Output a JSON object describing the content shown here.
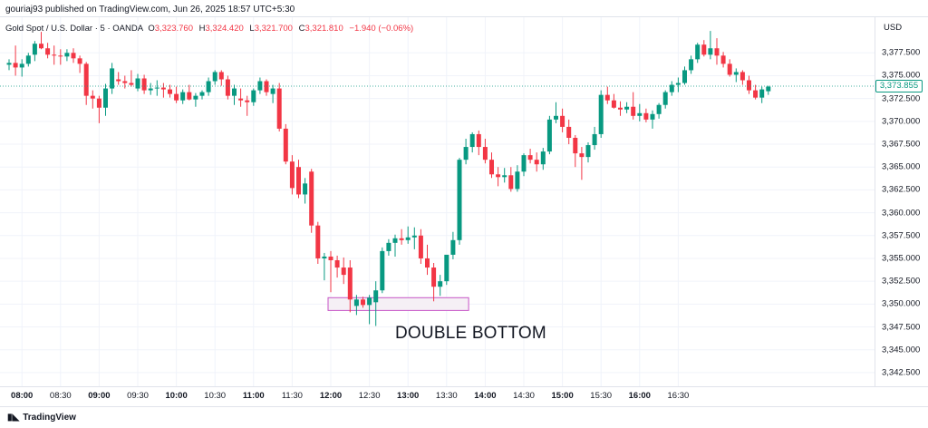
{
  "header": {
    "publisher_line": "gouriaj93 published on TradingView.com, Jun 26, 2025 18:57 UTC+5:30"
  },
  "symbol_bar": {
    "label": "Gold Spot / U.S. Dollar · 5 · OANDA",
    "o_key": "O",
    "o": "3,323.760",
    "h_key": "H",
    "h": "3,324.420",
    "l_key": "L",
    "l": "3,321.700",
    "c_key": "C",
    "c": "3,321.810",
    "change": "−1.940 (−0.06%)"
  },
  "axis": {
    "currency": "USD",
    "last_price": "3,373.855"
  },
  "annotation": {
    "text": "DOUBLE BOTTOM"
  },
  "brand": {
    "name": "TradingView"
  },
  "colors": {
    "up": "#089981",
    "down": "#f23645",
    "box_border": "#c653c6",
    "box_fill": "#f5f0f5",
    "grid": "#f0f3fa"
  },
  "chart_data": {
    "type": "candlestick",
    "ylim": [
      3341.0,
      3381.5
    ],
    "y_ticks": [
      "3,377.500",
      "3,375.000",
      "3,372.500",
      "3,370.000",
      "3,367.500",
      "3,365.000",
      "3,362.500",
      "3,360.000",
      "3,357.500",
      "3,355.000",
      "3,352.500",
      "3,350.000",
      "3,347.500",
      "3,345.000",
      "3,342.500"
    ],
    "x_ticks": [
      {
        "label": "08:00",
        "bold": true
      },
      {
        "label": "08:30",
        "bold": false
      },
      {
        "label": "09:00",
        "bold": true
      },
      {
        "label": "09:30",
        "bold": false
      },
      {
        "label": "10:00",
        "bold": true
      },
      {
        "label": "10:30",
        "bold": false
      },
      {
        "label": "11:00",
        "bold": true
      },
      {
        "label": "11:30",
        "bold": false
      },
      {
        "label": "12:00",
        "bold": true
      },
      {
        "label": "12:30",
        "bold": false
      },
      {
        "label": "13:00",
        "bold": true
      },
      {
        "label": "13:30",
        "bold": false
      },
      {
        "label": "14:00",
        "bold": true
      },
      {
        "label": "14:30",
        "bold": false
      },
      {
        "label": "15:00",
        "bold": true
      },
      {
        "label": "15:30",
        "bold": false
      },
      {
        "label": "16:00",
        "bold": true
      },
      {
        "label": "16:30",
        "bold": false
      }
    ],
    "annotation_box": {
      "price_low": 3349.3,
      "price_high": 3350.7,
      "from_index": 50,
      "to_index": 71
    },
    "ohlc": [
      [
        3376.2,
        3376.8,
        3375.6,
        3376.4
      ],
      [
        3376.4,
        3378.3,
        3375.0,
        3375.9
      ],
      [
        3375.9,
        3376.8,
        3374.9,
        3376.3
      ],
      [
        3376.3,
        3377.5,
        3376.0,
        3377.2
      ],
      [
        3377.3,
        3378.8,
        3376.6,
        3378.5
      ],
      [
        3378.5,
        3379.8,
        3377.9,
        3378.0
      ],
      [
        3378.0,
        3378.6,
        3376.9,
        3377.3
      ],
      [
        3377.3,
        3378.3,
        3376.2,
        3377.2
      ],
      [
        3377.2,
        3377.9,
        3376.2,
        3377.1
      ],
      [
        3377.1,
        3377.9,
        3376.6,
        3377.5
      ],
      [
        3377.5,
        3378.0,
        3376.4,
        3376.9
      ],
      [
        3376.9,
        3377.2,
        3375.3,
        3376.3
      ],
      [
        3376.3,
        3376.5,
        3371.8,
        3372.8
      ],
      [
        3372.8,
        3373.4,
        3371.4,
        3372.5
      ],
      [
        3372.5,
        3372.8,
        3369.8,
        3371.5
      ],
      [
        3371.5,
        3374.1,
        3370.6,
        3373.6
      ],
      [
        3373.6,
        3376.4,
        3373.0,
        3375.8
      ],
      [
        3374.6,
        3375.4,
        3374.0,
        3374.4
      ],
      [
        3374.4,
        3375.0,
        3373.6,
        3374.2
      ],
      [
        3374.2,
        3375.6,
        3373.8,
        3374.0
      ],
      [
        3373.6,
        3375.2,
        3373.3,
        3374.7
      ],
      [
        3374.7,
        3375.1,
        3373.0,
        3373.4
      ],
      [
        3373.4,
        3374.2,
        3372.9,
        3373.6
      ],
      [
        3373.6,
        3374.5,
        3372.8,
        3373.7
      ],
      [
        3373.7,
        3374.2,
        3372.6,
        3373.5
      ],
      [
        3373.5,
        3374.0,
        3372.6,
        3373.0
      ],
      [
        3373.0,
        3373.8,
        3372.0,
        3372.3
      ],
      [
        3372.3,
        3373.5,
        3371.9,
        3373.2
      ],
      [
        3373.2,
        3374.0,
        3372.3,
        3372.4
      ],
      [
        3372.4,
        3373.1,
        3371.6,
        3372.8
      ],
      [
        3372.8,
        3373.4,
        3372.4,
        3373.2
      ],
      [
        3373.2,
        3374.8,
        3372.8,
        3374.4
      ],
      [
        3374.4,
        3375.6,
        3374.0,
        3375.4
      ],
      [
        3375.4,
        3375.6,
        3373.9,
        3374.6
      ],
      [
        3374.6,
        3375.0,
        3372.4,
        3372.8
      ],
      [
        3372.8,
        3374.0,
        3371.8,
        3373.6
      ],
      [
        3372.5,
        3373.6,
        3371.6,
        3372.3
      ],
      [
        3372.3,
        3372.8,
        3370.6,
        3372.1
      ],
      [
        3372.1,
        3373.6,
        3371.7,
        3373.4
      ],
      [
        3373.4,
        3374.8,
        3373.0,
        3374.4
      ],
      [
        3374.4,
        3374.6,
        3372.8,
        3373.2
      ],
      [
        3373.0,
        3374.0,
        3372.0,
        3373.6
      ],
      [
        3373.6,
        3374.2,
        3368.9,
        3369.2
      ],
      [
        3369.2,
        3369.7,
        3365.3,
        3365.6
      ],
      [
        3365.6,
        3366.3,
        3362.0,
        3362.7
      ],
      [
        3365.0,
        3365.8,
        3361.6,
        3362.0
      ],
      [
        3362.0,
        3363.8,
        3361.0,
        3363.2
      ],
      [
        3364.5,
        3364.8,
        3357.8,
        3358.6
      ],
      [
        3358.6,
        3359.0,
        3354.4,
        3355.0
      ],
      [
        3355.0,
        3355.6,
        3352.6,
        3355.2
      ],
      [
        3355.2,
        3355.8,
        3351.3,
        3354.8
      ],
      [
        3354.8,
        3355.3,
        3352.9,
        3354.0
      ],
      [
        3354.0,
        3355.1,
        3352.2,
        3353.2
      ],
      [
        3354.0,
        3354.8,
        3349.1,
        3350.5
      ],
      [
        3349.8,
        3351.0,
        3348.8,
        3350.5
      ],
      [
        3350.5,
        3350.8,
        3349.6,
        3349.9
      ],
      [
        3349.9,
        3351.0,
        3347.8,
        3350.7
      ],
      [
        3350.2,
        3352.5,
        3347.6,
        3351.5
      ],
      [
        3351.5,
        3356.2,
        3351.2,
        3355.8
      ],
      [
        3355.8,
        3357.1,
        3355.3,
        3356.7
      ],
      [
        3356.7,
        3357.6,
        3355.2,
        3357.2
      ],
      [
        3357.2,
        3358.2,
        3356.5,
        3357.0
      ],
      [
        3357.0,
        3358.5,
        3356.6,
        3357.3
      ],
      [
        3357.3,
        3358.4,
        3356.0,
        3357.5
      ],
      [
        3357.5,
        3358.2,
        3354.4,
        3355.0
      ],
      [
        3355.0,
        3356.5,
        3353.2,
        3354.0
      ],
      [
        3354.0,
        3354.5,
        3350.3,
        3351.9
      ],
      [
        3351.9,
        3353.2,
        3350.9,
        3352.5
      ],
      [
        3352.5,
        3355.0,
        3352.1,
        3355.4
      ],
      [
        3355.4,
        3357.9,
        3354.9,
        3357.0
      ],
      [
        3357.0,
        3366.0,
        3356.5,
        3365.8
      ],
      [
        3365.8,
        3368.1,
        3365.3,
        3367.2
      ],
      [
        3367.2,
        3368.8,
        3366.6,
        3368.6
      ],
      [
        3368.6,
        3369.0,
        3366.3,
        3367.2
      ],
      [
        3367.2,
        3368.1,
        3365.4,
        3365.8
      ],
      [
        3365.8,
        3366.6,
        3363.8,
        3364.2
      ],
      [
        3364.2,
        3365.0,
        3362.9,
        3363.9
      ],
      [
        3363.9,
        3364.9,
        3363.3,
        3364.1
      ],
      [
        3364.1,
        3365.0,
        3362.3,
        3362.6
      ],
      [
        3362.6,
        3365.2,
        3362.3,
        3364.5
      ],
      [
        3364.5,
        3366.5,
        3364.0,
        3366.3
      ],
      [
        3366.3,
        3367.0,
        3365.4,
        3365.8
      ],
      [
        3365.8,
        3366.6,
        3364.5,
        3365.3
      ],
      [
        3365.3,
        3367.1,
        3364.7,
        3366.7
      ],
      [
        3366.7,
        3370.6,
        3366.4,
        3370.2
      ],
      [
        3370.2,
        3372.1,
        3369.8,
        3370.6
      ],
      [
        3370.6,
        3371.4,
        3368.8,
        3369.4
      ],
      [
        3369.4,
        3370.2,
        3367.5,
        3368.2
      ],
      [
        3368.2,
        3368.5,
        3365.0,
        3366.5
      ],
      [
        3366.5,
        3367.2,
        3363.6,
        3366.1
      ],
      [
        3366.1,
        3367.7,
        3365.5,
        3367.4
      ],
      [
        3367.4,
        3369.4,
        3366.9,
        3368.6
      ],
      [
        3368.6,
        3373.4,
        3368.2,
        3372.9
      ],
      [
        3372.9,
        3373.8,
        3371.9,
        3372.3
      ],
      [
        3372.3,
        3373.0,
        3371.4,
        3371.5
      ],
      [
        3371.5,
        3372.2,
        3370.6,
        3371.3
      ],
      [
        3371.3,
        3372.1,
        3370.9,
        3371.6
      ],
      [
        3371.6,
        3373.2,
        3370.2,
        3370.6
      ],
      [
        3370.6,
        3371.9,
        3370.0,
        3370.9
      ],
      [
        3370.9,
        3371.4,
        3369.9,
        3370.2
      ],
      [
        3370.2,
        3371.2,
        3369.2,
        3370.8
      ],
      [
        3370.8,
        3372.0,
        3370.3,
        3371.8
      ],
      [
        3371.8,
        3373.4,
        3371.4,
        3373.2
      ],
      [
        3373.2,
        3374.4,
        3372.8,
        3374.0
      ],
      [
        3374.0,
        3374.8,
        3373.2,
        3374.2
      ],
      [
        3374.2,
        3376.0,
        3374.0,
        3375.6
      ],
      [
        3375.6,
        3377.2,
        3375.2,
        3376.8
      ],
      [
        3376.8,
        3378.6,
        3376.4,
        3378.4
      ],
      [
        3378.4,
        3378.9,
        3377.1,
        3377.3
      ],
      [
        3377.3,
        3379.9,
        3376.8,
        3378.0
      ],
      [
        3378.0,
        3379.1,
        3376.2,
        3377.2
      ],
      [
        3377.2,
        3377.6,
        3375.9,
        3376.3
      ],
      [
        3376.3,
        3376.8,
        3374.9,
        3375.1
      ],
      [
        3375.1,
        3375.8,
        3374.3,
        3375.4
      ],
      [
        3375.4,
        3375.6,
        3374.0,
        3374.5
      ],
      [
        3374.5,
        3375.0,
        3373.0,
        3373.4
      ],
      [
        3373.4,
        3374.0,
        3372.4,
        3372.6
      ],
      [
        3372.6,
        3373.8,
        3372.0,
        3373.5
      ],
      [
        3373.3,
        3373.9,
        3372.9,
        3373.8
      ]
    ]
  }
}
